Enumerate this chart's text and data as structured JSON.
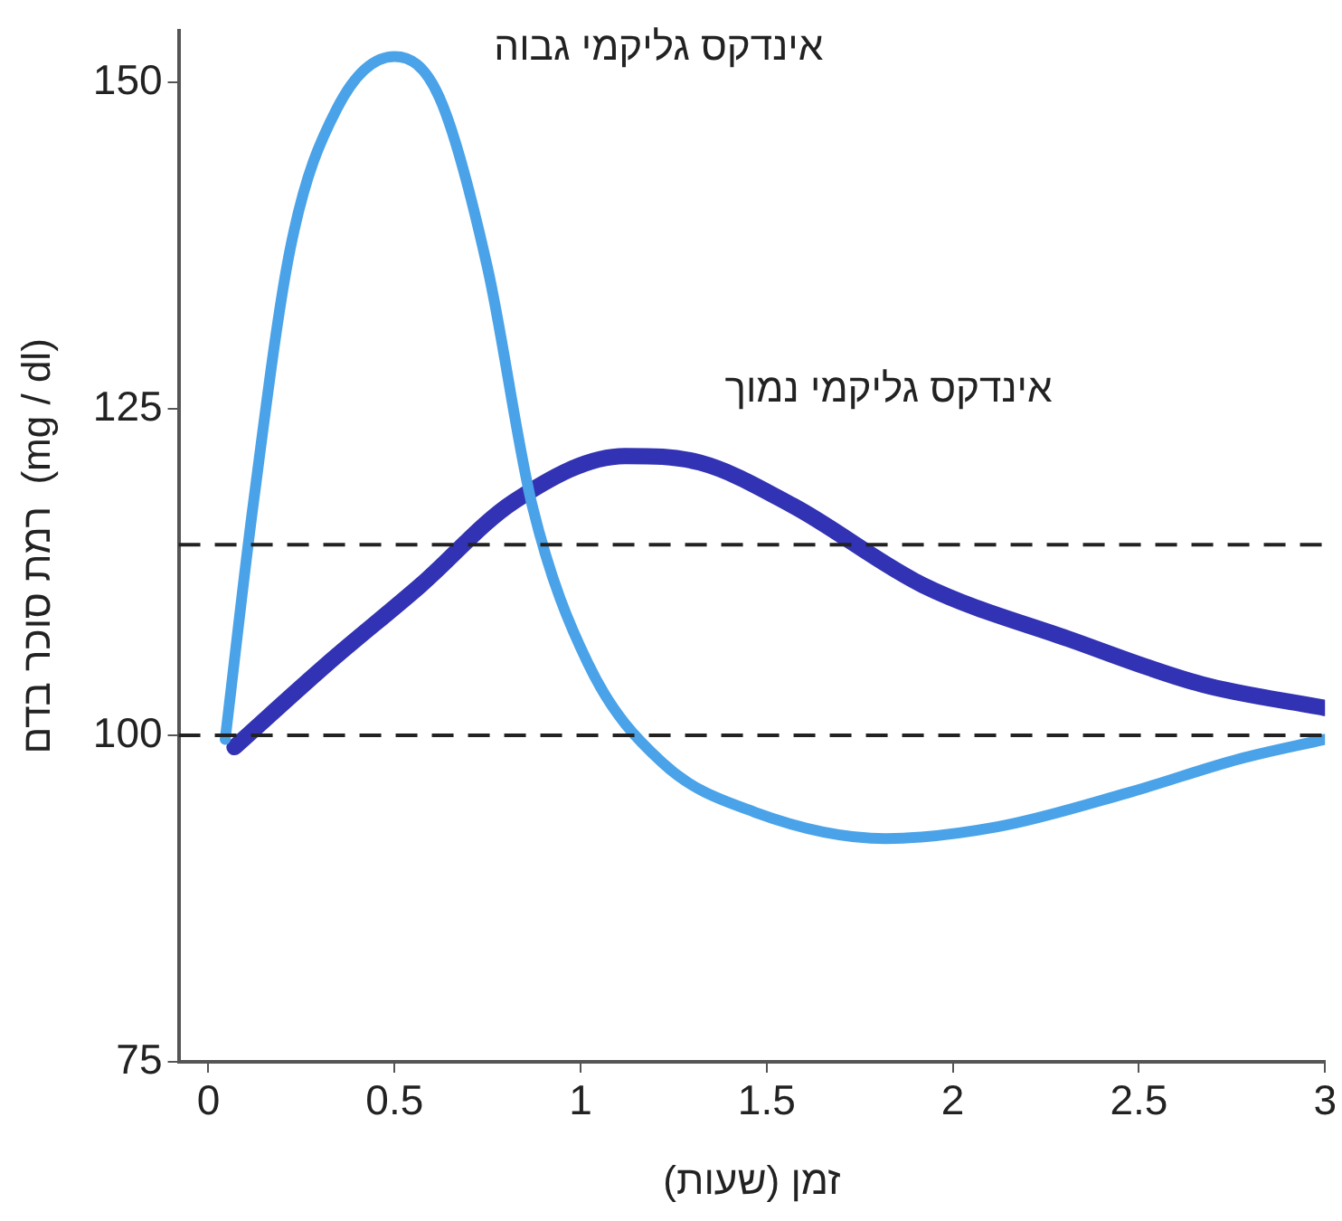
{
  "chart_data": {
    "type": "line",
    "xlabel": "זמן (שעות)",
    "ylabel": "רמת סוכר בדם  (mg / dl)",
    "xlim": [
      -0.08,
      3
    ],
    "xticks": [
      0,
      0.5,
      1,
      1.5,
      2,
      2.5,
      3
    ],
    "ylim": [
      75,
      154
    ],
    "yticks": [
      75,
      100,
      125,
      150
    ],
    "grid": false,
    "legend": false,
    "marker": "none",
    "line_style": "solid",
    "series": [
      {
        "name": "אינדקס גליקמי גבוה",
        "color": "#4aa3e8",
        "x": [
          0.045,
          0.12,
          0.22,
          0.345,
          0.5,
          0.62,
          0.75,
          0.87,
          1.02,
          1.22,
          1.47,
          1.82,
          2.12,
          2.47,
          2.77,
          3.0
        ],
        "values": [
          99.7,
          117.6,
          137.3,
          148,
          152,
          148.9,
          135.8,
          117.6,
          105.5,
          97.9,
          94.1,
          92.1,
          93,
          95.6,
          98.2,
          99.7
        ]
      },
      {
        "name": "אינדקס גליקמי נמוך",
        "color": "#3232b4",
        "x": [
          0.07,
          0.32,
          0.57,
          0.82,
          1.12,
          1.32,
          1.57,
          1.92,
          2.32,
          2.67,
          3.0
        ],
        "values": [
          99.1,
          105.5,
          111.5,
          117.9,
          121.4,
          120.9,
          117.6,
          111.5,
          107.3,
          103.9,
          102.1
        ]
      }
    ],
    "ref_lines": [
      {
        "axis": "y",
        "value": 100,
        "color": "#222222",
        "line_style": "dashed"
      },
      {
        "axis": "y",
        "value": 114.6,
        "color": "#222222",
        "line_style": "dashed"
      }
    ]
  }
}
